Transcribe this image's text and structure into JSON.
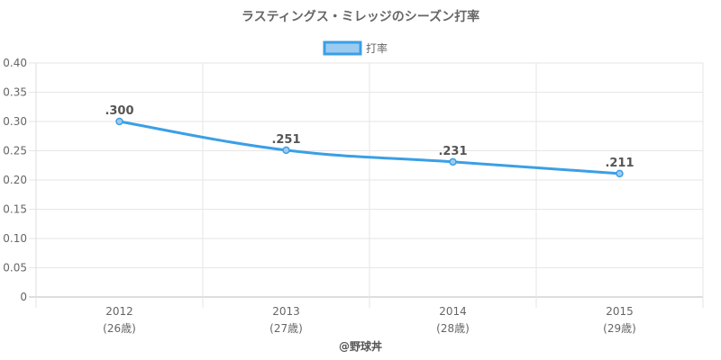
{
  "chart_data": {
    "type": "line",
    "title": "ラスティングス・ミレッジのシーズン打率",
    "categories": [
      "2012",
      "2013",
      "2014",
      "2015"
    ],
    "category_sublabels": [
      "(26歳)",
      "(27歳)",
      "(28歳)",
      "(29歳)"
    ],
    "series": [
      {
        "name": "打率",
        "values": [
          0.3,
          0.251,
          0.231,
          0.211
        ],
        "data_labels": [
          ".300",
          ".251",
          ".231",
          ".211"
        ],
        "color": "#3b9fe6",
        "fill": "#9ccbf0"
      }
    ],
    "ylim": [
      0,
      0.4
    ],
    "yticks": [
      "0",
      "0.05",
      "0.10",
      "0.15",
      "0.20",
      "0.25",
      "0.30",
      "0.35",
      "0.40"
    ],
    "grid": true,
    "legend_position": "top-center"
  },
  "footer": {
    "credit": "@野球丼"
  }
}
